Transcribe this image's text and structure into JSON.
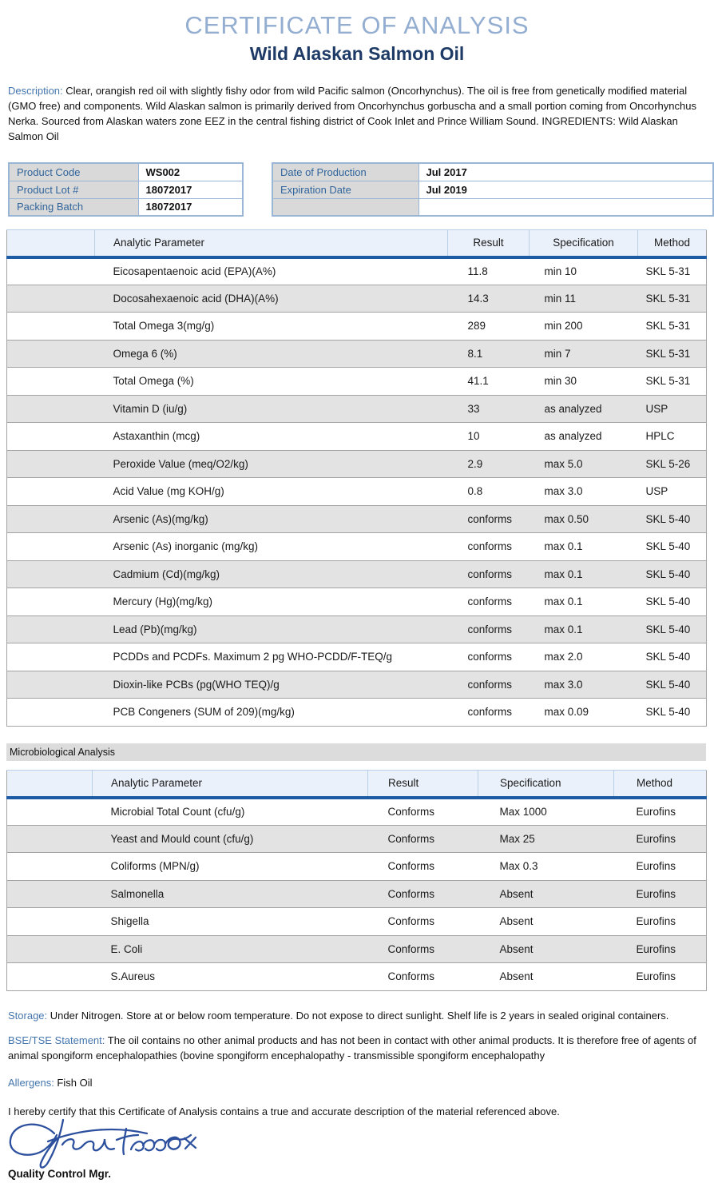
{
  "header": {
    "title": "CERTIFICATE OF ANALYSIS",
    "subtitle": "Wild Alaskan Salmon Oil"
  },
  "description": {
    "label": "Description: ",
    "text": "Clear, orangish red oil with slightly fishy odor from wild Pacific salmon (Oncorhynchus). The oil is free from genetically modified material (GMO free) and components. Wild Alaskan salmon is primarily derived from Oncorhynchus gorbuscha and a small portion coming from Oncorhynchus Nerka. Sourced from Alaskan waters zone EEZ in the central fishing district of Cook Inlet and Prince William Sound. INGREDIENTS: Wild Alaskan Salmon Oil"
  },
  "product_info": {
    "left_rows": [
      {
        "label": "Product Code",
        "value": "WS002"
      },
      {
        "label": "Product Lot #",
        "value": "18072017"
      },
      {
        "label": "Packing Batch",
        "value": "18072017"
      }
    ],
    "right_rows": [
      {
        "label": "Date of Production",
        "value": "Jul 2017"
      },
      {
        "label": "Expiration Date",
        "value": "Jul 2019"
      },
      {
        "label": "",
        "value": ""
      }
    ]
  },
  "analysis_table": {
    "headers": [
      "Analytic Parameter",
      "Result",
      "Specification",
      "Method"
    ],
    "rows": [
      [
        "Eicosapentaenoic acid (EPA)(A%)",
        "11.8",
        "min 10",
        "SKL 5-31"
      ],
      [
        "Docosahexaenoic acid (DHA)(A%)",
        "14.3",
        "min 11",
        "SKL 5-31"
      ],
      [
        "Total Omega 3(mg/g)",
        "289",
        "min 200",
        "SKL 5-31"
      ],
      [
        "Omega 6 (%)",
        "8.1",
        "min 7",
        "SKL 5-31"
      ],
      [
        "Total Omega (%)",
        "41.1",
        "min 30",
        "SKL 5-31"
      ],
      [
        "Vitamin D (iu/g)",
        "33",
        "as analyzed",
        "USP"
      ],
      [
        "Astaxanthin (mcg)",
        "10",
        "as analyzed",
        "HPLC"
      ],
      [
        "Peroxide Value (meq/O2/kg)",
        "2.9",
        "max 5.0",
        "SKL 5-26"
      ],
      [
        "Acid Value (mg KOH/g)",
        "0.8",
        "max 3.0",
        "USP"
      ],
      [
        "Arsenic (As)(mg/kg)",
        "conforms",
        "max 0.50",
        "SKL 5-40"
      ],
      [
        "Arsenic (As) inorganic (mg/kg)",
        "conforms",
        "max 0.1",
        "SKL 5-40"
      ],
      [
        "Cadmium (Cd)(mg/kg)",
        "conforms",
        "max 0.1",
        "SKL 5-40"
      ],
      [
        "Mercury (Hg)(mg/kg)",
        "conforms",
        "max 0.1",
        "SKL 5-40"
      ],
      [
        "Lead (Pb)(mg/kg)",
        "conforms",
        "max 0.1",
        "SKL 5-40"
      ],
      [
        "PCDDs and PCDFs. Maximum 2 pg WHO-PCDD/F-TEQ/g",
        "conforms",
        "max 2.0",
        "SKL 5-40"
      ],
      [
        "Dioxin-like PCBs (pg(WHO TEQ)/g",
        "conforms",
        "max 3.0",
        "SKL 5-40"
      ],
      [
        "PCB Congeners (SUM of 209)(mg/kg)",
        "conforms",
        "max 0.09",
        "SKL 5-40"
      ]
    ]
  },
  "micro_section": {
    "title": "Microbiological Analysis"
  },
  "micro_table": {
    "headers": [
      "Analytic Parameter",
      "Result",
      "Specification",
      "Method"
    ],
    "rows": [
      [
        "Microbial Total Count (cfu/g)",
        "Conforms",
        "Max 1000",
        "Eurofins"
      ],
      [
        "Yeast and Mould count (cfu/g)",
        "Conforms",
        "Max 25",
        "Eurofins"
      ],
      [
        "Coliforms (MPN/g)",
        "Conforms",
        "Max 0.3",
        "Eurofins"
      ],
      [
        "Salmonella",
        "Conforms",
        "Absent",
        "Eurofins"
      ],
      [
        "Shigella",
        "Conforms",
        "Absent",
        "Eurofins"
      ],
      [
        "E. Coli",
        "Conforms",
        "Absent",
        "Eurofins"
      ],
      [
        "S.Aureus",
        "Conforms",
        "Absent",
        "Eurofins"
      ]
    ]
  },
  "footer": {
    "storage_label": "Storage: ",
    "storage_text": "Under Nitrogen. Store at or below room temperature. Do not expose to direct sunlight. Shelf life is 2 years in sealed original containers.",
    "bse_label": "BSE/TSE Statement: ",
    "bse_text": "The oil contains no other animal products and has not been in contact with other animal products. It is therefore free of agents of animal spongiform encephalopathies (bovine spongiform encephalopathy -  transmissible spongiform encephalopathy",
    "allergens_label": "Allergens: ",
    "allergens_text": "Fish Oil",
    "certify_text": "I hereby certify that this Certificate of Analysis contains a true and accurate description of the material referenced above.",
    "signer_title": "Quality Control Mgr."
  },
  "colors": {
    "title_blue": "#93aed1",
    "subtitle_navy": "#1e3a66",
    "label_blue": "#4476ae",
    "kv_label_blue": "#31659c",
    "header_underline_blue": "#1d5ca5",
    "header_bg": "#eaf1fa",
    "alt_row_gray": "#e3e3e3",
    "signature_ink": "#2c4f9e"
  }
}
